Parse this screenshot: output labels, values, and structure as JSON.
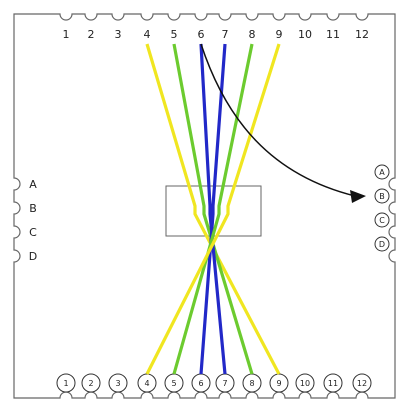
{
  "diagram": {
    "top_labels": [
      "1",
      "2",
      "3",
      "4",
      "5",
      "6",
      "7",
      "8",
      "9",
      "10",
      "11",
      "12"
    ],
    "bottom_labels": [
      "1",
      "2",
      "3",
      "4",
      "5",
      "6",
      "7",
      "8",
      "9",
      "10",
      "11",
      "12"
    ],
    "left_labels": [
      "A",
      "B",
      "C",
      "D"
    ],
    "right_labels": [
      "A",
      "B",
      "C",
      "D"
    ],
    "wires": [
      {
        "from": "4",
        "to": "9",
        "color": "#f0e620"
      },
      {
        "from": "5",
        "to": "8",
        "color": "#6ccb2f"
      },
      {
        "from": "6",
        "to": "7",
        "color": "#2228c8"
      },
      {
        "from": "7",
        "to": "6",
        "color": "#2228c8"
      },
      {
        "from": "8",
        "to": "5",
        "color": "#6ccb2f"
      },
      {
        "from": "9",
        "to": "4",
        "color": "#f0e620"
      }
    ],
    "arrow": {
      "from": "6",
      "to": "B"
    }
  }
}
